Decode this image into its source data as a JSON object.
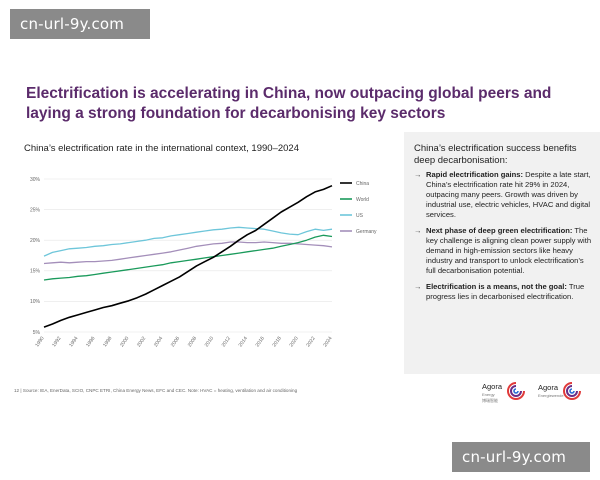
{
  "watermark": {
    "top": "cn-url-9y.com",
    "bottom": "cn-url-9y.com"
  },
  "title": "Electrification is accelerating in China, now outpacing global peers and laying a strong foundation for decarbonising key sectors",
  "right_panel": {
    "heading": "China’s electrification success benefits deep decarbonisation:",
    "bullets": [
      {
        "bold": "Rapid electrification gains:",
        "text": " Despite a late start, China’s electrification rate hit 29% in 2024, outpacing many peers. Growth was driven by industrial use, electric vehicles, HVAC and digital services."
      },
      {
        "bold": "Next phase of deep green electrification:",
        "text": " The key challenge is aligning clean power supply with demand in high-emission sectors like heavy industry and transport to unlock electrification’s full decarbonisation potential."
      },
      {
        "bold": "Electrification is a means, not the goal:",
        "text": " True progress lies in decarbonised electrification."
      }
    ],
    "arrow": "→"
  },
  "footer": {
    "page": "12",
    "sep": "|",
    "source": "Source: IEA, EnerData, SCIO, CNPC ETRI, China Energy News, EFC and CEC. Note: HVAC = heating, ventilation and air conditioning"
  },
  "logos": [
    {
      "name": "Agora",
      "sub": "Energy",
      "sub2": "博瑞智能"
    },
    {
      "name": "Agora",
      "sub": "Energiewende"
    }
  ],
  "colors": {
    "title": "#5b2b6b",
    "china": "#000000",
    "world": "#1a9a5b",
    "us": "#6ec6da",
    "germany": "#a48fba",
    "gridline": "#e6e6e6"
  },
  "chart_data": {
    "type": "line",
    "title": "China’s electrification rate in the international context, 1990–2024",
    "xlabel": "",
    "ylabel": "",
    "xlim": [
      1990,
      2024
    ],
    "ylim": [
      5,
      30
    ],
    "yticks": [
      5,
      10,
      15,
      20,
      25,
      30
    ],
    "ytick_labels": [
      "5%",
      "10%",
      "15%",
      "20%",
      "25%",
      "30%"
    ],
    "xticks": [
      1990,
      1992,
      1994,
      1996,
      1998,
      2000,
      2002,
      2004,
      2006,
      2008,
      2010,
      2012,
      2014,
      2016,
      2018,
      2020,
      2022,
      2024
    ],
    "legend_position": "right",
    "x": [
      1990,
      1991,
      1992,
      1993,
      1994,
      1995,
      1996,
      1997,
      1998,
      1999,
      2000,
      2001,
      2002,
      2003,
      2004,
      2005,
      2006,
      2007,
      2008,
      2009,
      2010,
      2011,
      2012,
      2013,
      2014,
      2015,
      2016,
      2017,
      2018,
      2019,
      2020,
      2021,
      2022,
      2023,
      2024
    ],
    "series": [
      {
        "name": "China",
        "color": "#000000",
        "values": [
          5.8,
          6.3,
          6.9,
          7.4,
          7.8,
          8.2,
          8.6,
          9.0,
          9.3,
          9.7,
          10.1,
          10.6,
          11.2,
          11.9,
          12.6,
          13.3,
          14.0,
          14.9,
          15.8,
          16.5,
          17.2,
          18.1,
          19.0,
          20.0,
          20.9,
          21.6,
          22.6,
          23.6,
          24.6,
          25.4,
          26.2,
          27.1,
          27.9,
          28.3,
          28.9
        ]
      },
      {
        "name": "World",
        "color": "#1a9a5b",
        "values": [
          13.5,
          13.7,
          13.8,
          13.9,
          14.1,
          14.2,
          14.4,
          14.6,
          14.8,
          15.0,
          15.2,
          15.4,
          15.6,
          15.8,
          16.0,
          16.3,
          16.5,
          16.7,
          16.9,
          17.1,
          17.3,
          17.5,
          17.7,
          17.9,
          18.1,
          18.3,
          18.5,
          18.7,
          19.0,
          19.3,
          19.6,
          20.0,
          20.5,
          20.8,
          20.6
        ]
      },
      {
        "name": "US",
        "color": "#6ec6da",
        "values": [
          17.4,
          18.0,
          18.3,
          18.6,
          18.7,
          18.8,
          19.0,
          19.1,
          19.3,
          19.4,
          19.6,
          19.8,
          20.0,
          20.3,
          20.4,
          20.7,
          20.9,
          21.1,
          21.3,
          21.5,
          21.7,
          21.8,
          22.0,
          22.1,
          22.0,
          21.9,
          21.8,
          21.5,
          21.2,
          21.0,
          20.9,
          21.4,
          21.8,
          21.6,
          21.8
        ]
      },
      {
        "name": "Germany",
        "color": "#a48fba",
        "values": [
          16.2,
          16.3,
          16.4,
          16.3,
          16.4,
          16.5,
          16.5,
          16.6,
          16.7,
          16.9,
          17.1,
          17.3,
          17.5,
          17.7,
          17.9,
          18.1,
          18.4,
          18.7,
          19.0,
          19.2,
          19.4,
          19.5,
          19.7,
          19.7,
          19.6,
          19.6,
          19.7,
          19.6,
          19.5,
          19.5,
          19.4,
          19.3,
          19.2,
          19.1,
          18.9
        ]
      }
    ]
  }
}
